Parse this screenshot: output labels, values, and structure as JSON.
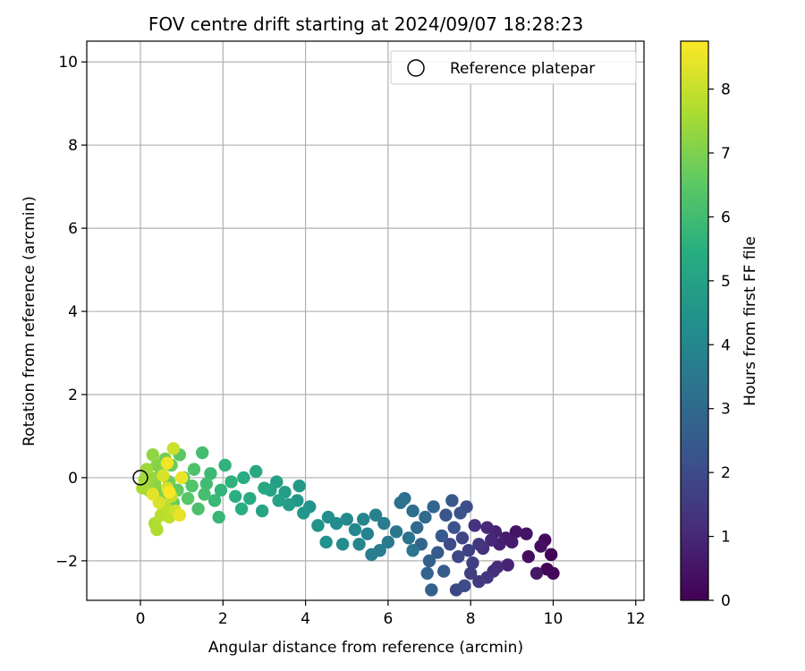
{
  "chart_data": {
    "type": "scatter",
    "title": "FOV centre drift starting at 2024/09/07 18:28:23",
    "xlabel": "Angular distance from reference (arcmin)",
    "ylabel": "Rotation from reference (arcmin)",
    "xlim": [
      -1.3,
      12.2
    ],
    "ylim": [
      -2.95,
      10.5
    ],
    "x_ticks": [
      0,
      2,
      4,
      6,
      8,
      10,
      12
    ],
    "y_ticks": [
      -2,
      0,
      2,
      4,
      6,
      8,
      10
    ],
    "y_tick_labels": [
      "−2",
      "0",
      "2",
      "4",
      "6",
      "8",
      "10"
    ],
    "grid": true,
    "legend": {
      "placement": "top-right",
      "entries": [
        "Reference platepar"
      ]
    },
    "reference_point": {
      "x": 0,
      "y": 0,
      "marker": "open-circle"
    },
    "colorbar": {
      "label": "Hours from first FF file",
      "colormap": "viridis",
      "range": [
        0,
        8.75
      ],
      "ticks": [
        0,
        1,
        2,
        3,
        4,
        5,
        6,
        7,
        8
      ]
    },
    "points": [
      {
        "x": 9.95,
        "y": -1.85,
        "c": 0.05
      },
      {
        "x": 9.85,
        "y": -2.2,
        "c": 0.1
      },
      {
        "x": 10.0,
        "y": -2.3,
        "c": 0.15
      },
      {
        "x": 9.8,
        "y": -1.5,
        "c": 0.2
      },
      {
        "x": 9.4,
        "y": -1.9,
        "c": 0.3
      },
      {
        "x": 9.7,
        "y": -1.65,
        "c": 0.35
      },
      {
        "x": 9.35,
        "y": -1.35,
        "c": 0.45
      },
      {
        "x": 9.1,
        "y": -1.3,
        "c": 0.5
      },
      {
        "x": 9.6,
        "y": -2.3,
        "c": 0.55
      },
      {
        "x": 9.0,
        "y": -1.55,
        "c": 0.65
      },
      {
        "x": 8.85,
        "y": -1.45,
        "c": 0.7
      },
      {
        "x": 8.7,
        "y": -1.6,
        "c": 0.8
      },
      {
        "x": 8.9,
        "y": -2.1,
        "c": 0.85
      },
      {
        "x": 8.6,
        "y": -1.3,
        "c": 0.9
      },
      {
        "x": 8.5,
        "y": -1.5,
        "c": 1.0
      },
      {
        "x": 8.4,
        "y": -1.2,
        "c": 1.05
      },
      {
        "x": 8.65,
        "y": -2.15,
        "c": 1.1
      },
      {
        "x": 8.55,
        "y": -2.25,
        "c": 1.2
      },
      {
        "x": 8.3,
        "y": -1.7,
        "c": 1.25
      },
      {
        "x": 8.1,
        "y": -1.15,
        "c": 1.3
      },
      {
        "x": 8.2,
        "y": -1.6,
        "c": 1.4
      },
      {
        "x": 8.4,
        "y": -2.4,
        "c": 1.45
      },
      {
        "x": 8.2,
        "y": -2.5,
        "c": 1.5
      },
      {
        "x": 8.0,
        "y": -2.3,
        "c": 1.6
      },
      {
        "x": 8.05,
        "y": -2.05,
        "c": 1.65
      },
      {
        "x": 7.95,
        "y": -1.75,
        "c": 1.7
      },
      {
        "x": 7.8,
        "y": -1.45,
        "c": 1.8
      },
      {
        "x": 7.7,
        "y": -1.9,
        "c": 1.85
      },
      {
        "x": 7.65,
        "y": -2.7,
        "c": 1.9
      },
      {
        "x": 7.85,
        "y": -2.6,
        "c": 2.0
      },
      {
        "x": 7.5,
        "y": -1.6,
        "c": 2.05
      },
      {
        "x": 7.9,
        "y": -0.7,
        "c": 2.1
      },
      {
        "x": 7.75,
        "y": -0.85,
        "c": 2.2
      },
      {
        "x": 7.6,
        "y": -1.2,
        "c": 2.25
      },
      {
        "x": 7.4,
        "y": -0.9,
        "c": 2.3
      },
      {
        "x": 7.55,
        "y": -0.55,
        "c": 2.4
      },
      {
        "x": 7.3,
        "y": -1.4,
        "c": 2.45
      },
      {
        "x": 7.2,
        "y": -1.8,
        "c": 2.5
      },
      {
        "x": 7.35,
        "y": -2.25,
        "c": 2.6
      },
      {
        "x": 7.0,
        "y": -2.0,
        "c": 2.65
      },
      {
        "x": 7.05,
        "y": -2.7,
        "c": 2.7
      },
      {
        "x": 6.95,
        "y": -2.3,
        "c": 2.8
      },
      {
        "x": 6.8,
        "y": -1.6,
        "c": 2.85
      },
      {
        "x": 7.1,
        "y": -0.7,
        "c": 2.9
      },
      {
        "x": 6.9,
        "y": -0.95,
        "c": 3.0
      },
      {
        "x": 6.7,
        "y": -1.2,
        "c": 3.05
      },
      {
        "x": 6.6,
        "y": -0.8,
        "c": 3.1
      },
      {
        "x": 6.4,
        "y": -0.5,
        "c": 3.2
      },
      {
        "x": 6.3,
        "y": -0.6,
        "c": 3.25
      },
      {
        "x": 6.5,
        "y": -1.45,
        "c": 3.3
      },
      {
        "x": 6.6,
        "y": -1.75,
        "c": 3.4
      },
      {
        "x": 6.2,
        "y": -1.3,
        "c": 3.45
      },
      {
        "x": 6.0,
        "y": -1.55,
        "c": 3.5
      },
      {
        "x": 5.9,
        "y": -1.1,
        "c": 3.6
      },
      {
        "x": 5.8,
        "y": -1.75,
        "c": 3.65
      },
      {
        "x": 5.6,
        "y": -1.85,
        "c": 3.7
      },
      {
        "x": 5.7,
        "y": -0.9,
        "c": 3.8
      },
      {
        "x": 5.5,
        "y": -1.35,
        "c": 3.85
      },
      {
        "x": 5.4,
        "y": -1.0,
        "c": 3.9
      },
      {
        "x": 5.3,
        "y": -1.6,
        "c": 4.0
      },
      {
        "x": 5.2,
        "y": -1.25,
        "c": 4.05
      },
      {
        "x": 5.0,
        "y": -1.0,
        "c": 4.1
      },
      {
        "x": 4.9,
        "y": -1.6,
        "c": 4.2
      },
      {
        "x": 4.75,
        "y": -1.1,
        "c": 4.25
      },
      {
        "x": 4.55,
        "y": -0.95,
        "c": 4.3
      },
      {
        "x": 4.5,
        "y": -1.55,
        "c": 4.4
      },
      {
        "x": 4.3,
        "y": -1.15,
        "c": 4.45
      },
      {
        "x": 4.1,
        "y": -0.7,
        "c": 4.5
      },
      {
        "x": 3.95,
        "y": -0.85,
        "c": 4.6
      },
      {
        "x": 3.8,
        "y": -0.55,
        "c": 4.65
      },
      {
        "x": 3.85,
        "y": -0.2,
        "c": 4.7
      },
      {
        "x": 3.6,
        "y": -0.65,
        "c": 4.8
      },
      {
        "x": 3.5,
        "y": -0.35,
        "c": 4.85
      },
      {
        "x": 3.3,
        "y": -0.1,
        "c": 4.9
      },
      {
        "x": 3.35,
        "y": -0.55,
        "c": 5.0
      },
      {
        "x": 3.15,
        "y": -0.3,
        "c": 5.05
      },
      {
        "x": 2.95,
        "y": -0.8,
        "c": 5.1
      },
      {
        "x": 3.0,
        "y": -0.25,
        "c": 5.2
      },
      {
        "x": 2.8,
        "y": 0.15,
        "c": 5.25
      },
      {
        "x": 2.65,
        "y": -0.5,
        "c": 5.3
      },
      {
        "x": 2.5,
        "y": 0.0,
        "c": 5.4
      },
      {
        "x": 2.45,
        "y": -0.75,
        "c": 5.45
      },
      {
        "x": 2.3,
        "y": -0.45,
        "c": 5.5
      },
      {
        "x": 2.2,
        "y": -0.1,
        "c": 5.6
      },
      {
        "x": 2.05,
        "y": 0.3,
        "c": 5.65
      },
      {
        "x": 1.95,
        "y": -0.3,
        "c": 5.7
      },
      {
        "x": 1.9,
        "y": -0.95,
        "c": 5.8
      },
      {
        "x": 1.8,
        "y": -0.55,
        "c": 5.85
      },
      {
        "x": 1.7,
        "y": 0.1,
        "c": 5.9
      },
      {
        "x": 1.6,
        "y": -0.15,
        "c": 6.0
      },
      {
        "x": 1.5,
        "y": 0.6,
        "c": 6.05
      },
      {
        "x": 1.55,
        "y": -0.4,
        "c": 6.1
      },
      {
        "x": 1.4,
        "y": -0.75,
        "c": 6.2
      },
      {
        "x": 1.3,
        "y": 0.2,
        "c": 6.25
      },
      {
        "x": 1.25,
        "y": -0.2,
        "c": 6.3
      },
      {
        "x": 1.15,
        "y": -0.5,
        "c": 6.4
      },
      {
        "x": 1.05,
        "y": 0.0,
        "c": 6.45
      },
      {
        "x": 0.95,
        "y": 0.55,
        "c": 6.5
      },
      {
        "x": 0.9,
        "y": -0.3,
        "c": 6.6
      },
      {
        "x": 0.8,
        "y": -0.6,
        "c": 6.65
      },
      {
        "x": 0.75,
        "y": 0.3,
        "c": 6.7
      },
      {
        "x": 0.7,
        "y": -0.1,
        "c": 6.8
      },
      {
        "x": 0.6,
        "y": 0.45,
        "c": 6.85
      },
      {
        "x": 0.55,
        "y": -0.35,
        "c": 6.9
      },
      {
        "x": 0.5,
        "y": 0.1,
        "c": 7.0
      },
      {
        "x": 0.45,
        "y": -0.5,
        "c": 7.05
      },
      {
        "x": 0.4,
        "y": 0.3,
        "c": 7.1
      },
      {
        "x": 0.35,
        "y": -0.15,
        "c": 7.2
      },
      {
        "x": 0.3,
        "y": 0.55,
        "c": 7.25
      },
      {
        "x": 0.25,
        "y": 0.0,
        "c": 7.3
      },
      {
        "x": 0.2,
        "y": -0.3,
        "c": 7.4
      },
      {
        "x": 0.15,
        "y": 0.2,
        "c": 7.45
      },
      {
        "x": 0.1,
        "y": -0.05,
        "c": 7.5
      },
      {
        "x": 0.05,
        "y": -0.25,
        "c": 7.6
      },
      {
        "x": 0.35,
        "y": -1.1,
        "c": 7.65
      },
      {
        "x": 0.4,
        "y": -1.25,
        "c": 7.7
      },
      {
        "x": 0.5,
        "y": -0.9,
        "c": 7.8
      },
      {
        "x": 0.6,
        "y": -0.7,
        "c": 7.85
      },
      {
        "x": 0.7,
        "y": -0.95,
        "c": 7.9
      },
      {
        "x": 0.75,
        "y": -0.45,
        "c": 8.0
      },
      {
        "x": 0.8,
        "y": 0.7,
        "c": 8.05
      },
      {
        "x": 0.85,
        "y": -0.8,
        "c": 8.1
      },
      {
        "x": 0.65,
        "y": -0.25,
        "c": 8.2
      },
      {
        "x": 0.55,
        "y": 0.05,
        "c": 8.25
      },
      {
        "x": 0.45,
        "y": -0.6,
        "c": 8.3
      },
      {
        "x": 0.3,
        "y": -0.4,
        "c": 8.4
      },
      {
        "x": 0.95,
        "y": -0.9,
        "c": 8.45
      },
      {
        "x": 1.0,
        "y": 0.0,
        "c": 8.5
      },
      {
        "x": 0.65,
        "y": 0.35,
        "c": 8.6
      },
      {
        "x": 0.7,
        "y": -0.35,
        "c": 8.7
      }
    ]
  }
}
